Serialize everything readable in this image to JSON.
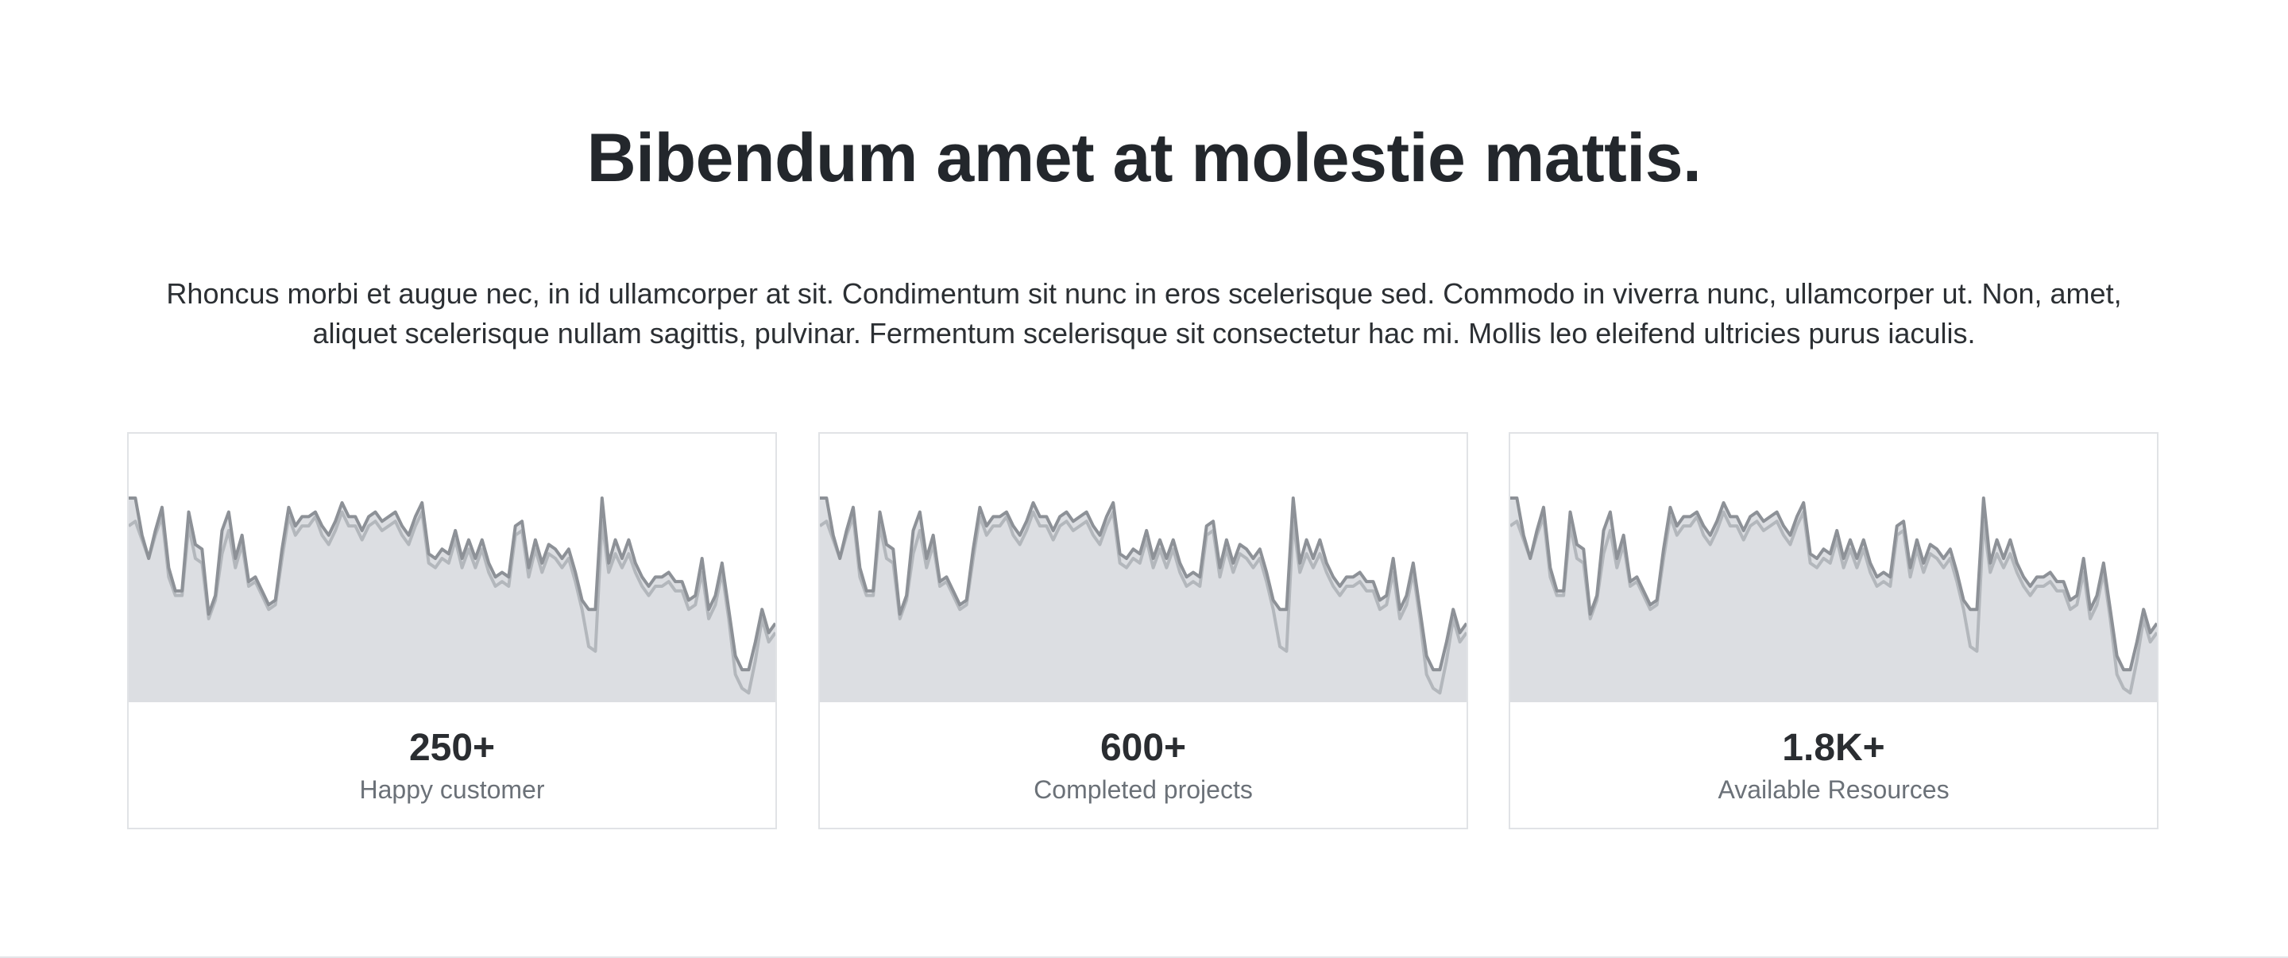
{
  "section": {
    "heading": "Bibendum amet at molestie mattis.",
    "description": "Rhoncus morbi et augue nec, in id ullamcorper at sit. Condimentum sit nunc in eros scelerisque sed. Commodo in viverra nunc, ullamcorper ut. Non, amet, aliquet scelerisque nullam sagittis, pulvinar. Fermentum scelerisque sit consectetur hac mi. Mollis leo eleifend ultricies purus iaculis."
  },
  "stats": [
    {
      "value": "250+",
      "label": "Happy customer"
    },
    {
      "value": "600+",
      "label": "Completed projects"
    },
    {
      "value": "1.8K+",
      "label": "Available Resources"
    }
  ],
  "colors": {
    "fill": "#dcdee2",
    "line_dark": "#8d9197",
    "line_light": "#b3b7bc"
  },
  "chart_data": {
    "type": "area",
    "xlabel": "",
    "ylabel": "",
    "series": [
      {
        "values": [
          88,
          88,
          72,
          62,
          74,
          84,
          58,
          48,
          48,
          82,
          68,
          66,
          38,
          46,
          74,
          82,
          62,
          72,
          52,
          54,
          48,
          42,
          44,
          66,
          84,
          76,
          80,
          80,
          82,
          76,
          72,
          78,
          86,
          80,
          80,
          74,
          80,
          82,
          78,
          80,
          82,
          76,
          72,
          80,
          86,
          64,
          62,
          66,
          64,
          74,
          62,
          70,
          62,
          70,
          60,
          54,
          56,
          54,
          76,
          78,
          58,
          70,
          60,
          68,
          66,
          62,
          66,
          56,
          44,
          40,
          40,
          88,
          60,
          70,
          62,
          70,
          60,
          54,
          50,
          54,
          54,
          56,
          52,
          52,
          44,
          46,
          62,
          40,
          46,
          60,
          40,
          20,
          14,
          14,
          26,
          40,
          30,
          34
        ]
      },
      {
        "values": [
          76,
          78,
          70,
          62,
          72,
          80,
          54,
          46,
          46,
          76,
          62,
          60,
          36,
          44,
          64,
          74,
          58,
          68,
          50,
          52,
          46,
          40,
          42,
          62,
          80,
          72,
          76,
          76,
          80,
          72,
          68,
          74,
          82,
          76,
          76,
          70,
          76,
          78,
          74,
          76,
          78,
          72,
          68,
          76,
          82,
          60,
          58,
          62,
          60,
          70,
          58,
          66,
          58,
          66,
          56,
          50,
          52,
          50,
          72,
          74,
          54,
          66,
          56,
          64,
          62,
          58,
          62,
          52,
          40,
          24,
          22,
          78,
          56,
          64,
          58,
          64,
          56,
          50,
          46,
          50,
          50,
          52,
          48,
          48,
          40,
          42,
          56,
          36,
          42,
          56,
          36,
          12,
          6,
          4,
          18,
          36,
          26,
          30
        ]
      }
    ]
  }
}
